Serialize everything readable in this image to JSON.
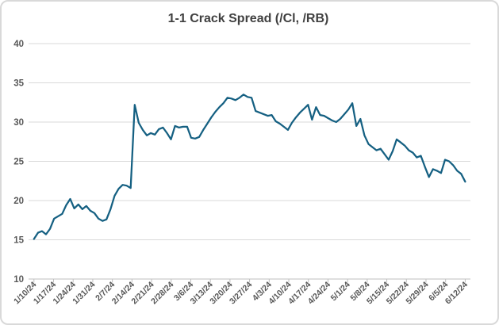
{
  "chart_data": {
    "type": "line",
    "title": "1-1 Crack Spread (/Cl, /RB)",
    "x_tick_labels": [
      "1/10/24",
      "1/17/24",
      "1/24/24",
      "1/31/24",
      "2/7/24",
      "2/14/24",
      "2/21/24",
      "2/28/24",
      "3/6/24",
      "3/13/24",
      "3/20/24",
      "3/27/24",
      "4/3/24",
      "4/10/24",
      "4/17/24",
      "4/24/24",
      "5/1/24",
      "5/8/24",
      "5/15/24",
      "5/22/24",
      "5/29/24",
      "6/5/24",
      "6/12/24"
    ],
    "y_ticks": [
      40,
      35,
      30,
      25,
      20,
      15,
      10
    ],
    "ylim": [
      10,
      40
    ],
    "grid": true,
    "legend_position": "none",
    "series": [
      {
        "name": "1-1 Crack Spread",
        "color": "#156082",
        "values": [
          15.1,
          15.9,
          16.1,
          15.7,
          16.4,
          17.7,
          18.0,
          18.3,
          19.4,
          20.2,
          19.0,
          19.5,
          18.9,
          19.3,
          18.7,
          18.4,
          17.7,
          17.4,
          17.6,
          18.9,
          20.6,
          21.5,
          22.0,
          21.9,
          21.6,
          32.2,
          29.9,
          29.0,
          28.3,
          28.6,
          28.4,
          29.1,
          29.3,
          28.6,
          27.8,
          29.5,
          29.3,
          29.4,
          29.4,
          28.0,
          27.9,
          28.1,
          29.0,
          29.8,
          30.6,
          31.3,
          31.9,
          32.4,
          33.1,
          33.0,
          32.8,
          33.1,
          33.5,
          33.2,
          33.1,
          31.4,
          31.2,
          31.0,
          30.8,
          30.9,
          30.1,
          29.8,
          29.4,
          29.0,
          29.9,
          30.6,
          31.2,
          31.7,
          32.2,
          30.3,
          31.9,
          30.9,
          30.8,
          30.5,
          30.2,
          30.0,
          30.4,
          31.0,
          31.6,
          32.4,
          29.5,
          30.4,
          28.3,
          27.2,
          26.8,
          26.4,
          26.6,
          25.9,
          25.2,
          26.3,
          27.8,
          27.4,
          27.0,
          26.4,
          26.1,
          25.5,
          25.7,
          24.3,
          23.0,
          24.0,
          23.8,
          23.5,
          25.2,
          25.0,
          24.5,
          23.8,
          23.4,
          22.4
        ]
      }
    ]
  },
  "colors": {
    "background": "#ffffff",
    "border": "#d9d9d9",
    "title_text": "#404040",
    "axis_text": "#595959",
    "gridline": "#d9d9d9",
    "axis_line": "#bfbfbf",
    "line": "#156082"
  }
}
